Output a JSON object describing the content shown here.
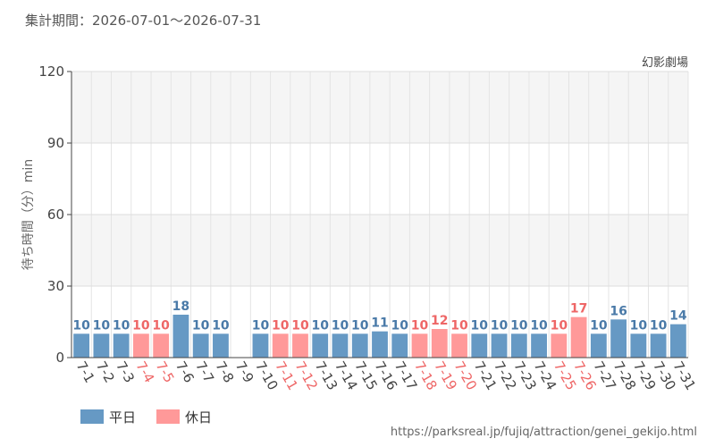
{
  "header": {
    "period": "集計期間：2026-07-01～2026-07-31"
  },
  "footer": {
    "source_url": "https://parksreal.jp/fujiq/attraction/genei_gekijo.html"
  },
  "colors": {
    "weekday": "#6699c4",
    "holiday": "#ff9999",
    "weekday_text": "#4a7aa8",
    "holiday_text": "#ee6666"
  },
  "chart_data": {
    "type": "bar",
    "title": "幻影劇場",
    "ylabel": "待ち時間（分）min",
    "ylim": [
      0,
      120
    ],
    "yticks": [
      0,
      30,
      60,
      90,
      120
    ],
    "grid": true,
    "legend_position": "bottom-left",
    "categories": [
      "7-1",
      "7-2",
      "7-3",
      "7-4",
      "7-5",
      "7-6",
      "7-7",
      "7-8",
      "7-9",
      "7-10",
      "7-11",
      "7-12",
      "7-13",
      "7-14",
      "7-15",
      "7-16",
      "7-17",
      "7-18",
      "7-19",
      "7-20",
      "7-21",
      "7-22",
      "7-23",
      "7-24",
      "7-25",
      "7-26",
      "7-27",
      "7-28",
      "7-29",
      "7-30",
      "7-31"
    ],
    "values": [
      10,
      10,
      10,
      10,
      10,
      18,
      10,
      10,
      null,
      10,
      10,
      10,
      10,
      10,
      10,
      11,
      10,
      10,
      12,
      10,
      10,
      10,
      10,
      10,
      10,
      17,
      10,
      16,
      10,
      10,
      14
    ],
    "day_type": [
      "weekday",
      "weekday",
      "weekday",
      "holiday",
      "holiday",
      "weekday",
      "weekday",
      "weekday",
      "weekday",
      "weekday",
      "holiday",
      "holiday",
      "weekday",
      "weekday",
      "weekday",
      "weekday",
      "weekday",
      "holiday",
      "holiday",
      "holiday",
      "weekday",
      "weekday",
      "weekday",
      "weekday",
      "holiday",
      "holiday",
      "weekday",
      "weekday",
      "weekday",
      "weekday",
      "weekday"
    ],
    "legend": [
      {
        "key": "weekday",
        "label": "平日"
      },
      {
        "key": "holiday",
        "label": "休日"
      }
    ]
  }
}
